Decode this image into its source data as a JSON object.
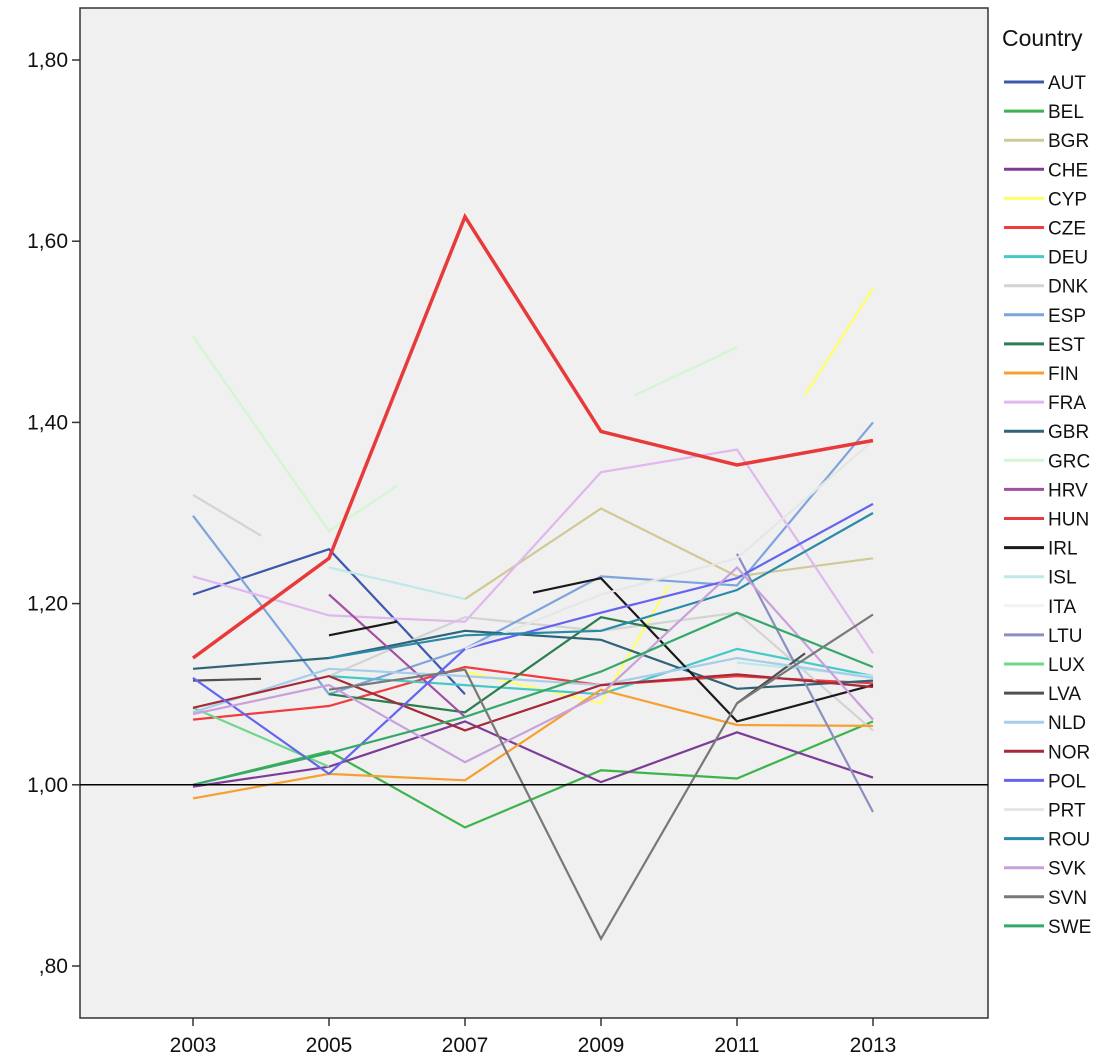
{
  "chart_data": {
    "type": "line",
    "title": "",
    "xlabel": "",
    "ylabel": "",
    "x": [
      2003,
      2005,
      2007,
      2009,
      2011,
      2013
    ],
    "x_tick_labels": [
      "2003",
      "2005",
      "2007",
      "2009",
      "2011",
      "2013"
    ],
    "ylim": [
      0.75,
      1.87
    ],
    "y_ticks": [
      0.8,
      1.0,
      1.2,
      1.4,
      1.6,
      1.8
    ],
    "y_tick_labels": [
      ",80",
      "1,00",
      "1,20",
      "1,40",
      "1,60",
      "1,80"
    ],
    "reference_line": 1.0,
    "grid": false,
    "plot_background": "#f0f0f0",
    "legend": {
      "title": "Country",
      "placement": "right"
    },
    "series": [
      {
        "name": "AUT",
        "color": "#3e58ac",
        "segments": [
          [
            [
              2003,
              1.21
            ],
            [
              2005,
              1.26
            ],
            [
              2007,
              1.1
            ]
          ]
        ]
      },
      {
        "name": "BEL",
        "color": "#3cb44b",
        "segments": [
          [
            [
              2003,
              1.0
            ],
            [
              2005,
              1.037
            ],
            [
              2007,
              0.953
            ],
            [
              2009,
              1.016
            ],
            [
              2011,
              1.007
            ],
            [
              2013,
              1.07
            ]
          ]
        ]
      },
      {
        "name": "BGR",
        "color": "#cfc995",
        "segments": [
          [
            [
              2007,
              1.205
            ],
            [
              2009,
              1.305
            ],
            [
              2011,
              1.23
            ],
            [
              2013,
              1.25
            ]
          ]
        ]
      },
      {
        "name": "CHE",
        "color": "#7d3c98",
        "segments": [
          [
            [
              2003,
              0.998
            ],
            [
              2005,
              1.02
            ],
            [
              2007,
              1.07
            ],
            [
              2009,
              1.003
            ],
            [
              2011,
              1.058
            ],
            [
              2013,
              1.008
            ]
          ]
        ]
      },
      {
        "name": "CYP",
        "color": "#ffff66",
        "segments": [
          [
            [
              2007,
              1.125
            ],
            [
              2009,
              1.09
            ],
            [
              2010,
              1.22
            ]
          ],
          [
            [
              2012,
              1.43
            ],
            [
              2013,
              1.548
            ]
          ]
        ]
      },
      {
        "name": "CZE",
        "color": "#f03c3c",
        "segments": [
          [
            [
              2003,
              1.072
            ],
            [
              2005,
              1.087
            ],
            [
              2007,
              1.13
            ],
            [
              2009,
              1.11
            ],
            [
              2011,
              1.12
            ],
            [
              2013,
              1.112
            ]
          ]
        ]
      },
      {
        "name": "DEU",
        "color": "#46c8c8",
        "segments": [
          [
            [
              2005,
              1.12
            ],
            [
              2007,
              1.11
            ],
            [
              2009,
              1.1
            ],
            [
              2011,
              1.15
            ],
            [
              2013,
              1.12
            ]
          ]
        ]
      },
      {
        "name": "DNK",
        "color": "#d3d3d3",
        "segments": [
          [
            [
              2003,
              1.32
            ],
            [
              2004,
              1.275
            ]
          ],
          [
            [
              2005,
              1.12
            ],
            [
              2007,
              1.185
            ],
            [
              2009,
              1.17
            ],
            [
              2011,
              1.19
            ],
            [
              2013,
              1.06
            ]
          ]
        ]
      },
      {
        "name": "ESP",
        "color": "#7da5dc",
        "segments": [
          [
            [
              2003,
              1.297
            ],
            [
              2005,
              1.1
            ],
            [
              2007,
              1.15
            ],
            [
              2009,
              1.23
            ],
            [
              2011,
              1.22
            ],
            [
              2013,
              1.4
            ]
          ]
        ]
      },
      {
        "name": "EST",
        "color": "#2e7d4f",
        "segments": [
          [
            [
              2005,
              1.1
            ],
            [
              2007,
              1.08
            ],
            [
              2009,
              1.185
            ],
            [
              2010,
              1.17
            ]
          ]
        ]
      },
      {
        "name": "FIN",
        "color": "#f5a030",
        "segments": [
          [
            [
              2003,
              0.985
            ],
            [
              2005,
              1.012
            ],
            [
              2007,
              1.005
            ],
            [
              2009,
              1.105
            ],
            [
              2011,
              1.066
            ],
            [
              2013,
              1.065
            ]
          ]
        ]
      },
      {
        "name": "FRA",
        "color": "#e0b7ee",
        "segments": [
          [
            [
              2003,
              1.23
            ],
            [
              2005,
              1.187
            ],
            [
              2007,
              1.18
            ],
            [
              2009,
              1.345
            ],
            [
              2011,
              1.37
            ],
            [
              2013,
              1.145
            ]
          ]
        ]
      },
      {
        "name": "GBR",
        "color": "#2f6478",
        "segments": [
          [
            [
              2003,
              1.128
            ],
            [
              2005,
              1.14
            ],
            [
              2007,
              1.17
            ],
            [
              2009,
              1.16
            ],
            [
              2011,
              1.106
            ],
            [
              2013,
              1.115
            ]
          ]
        ]
      },
      {
        "name": "GRC",
        "color": "#d2f5d2",
        "segments": [
          [
            [
              2003,
              1.495
            ],
            [
              2005,
              1.28
            ],
            [
              2006,
              1.33
            ]
          ],
          [
            [
              2009.5,
              1.43
            ],
            [
              2011,
              1.483
            ]
          ]
        ]
      },
      {
        "name": "HRV",
        "color": "#a34ea3",
        "segments": [
          [
            [
              2005,
              1.21
            ],
            [
              2007,
              1.075
            ]
          ]
        ]
      },
      {
        "name": "HUN",
        "color": "#e8393b",
        "segments": [
          [
            [
              2003,
              1.14
            ],
            [
              2005,
              1.25
            ],
            [
              2007,
              1.627
            ],
            [
              2009,
              1.39
            ],
            [
              2011,
              1.353
            ],
            [
              2013,
              1.38
            ]
          ]
        ]
      },
      {
        "name": "IRL",
        "color": "#1a1a1a",
        "segments": [
          [
            [
              2005,
              1.165
            ],
            [
              2006,
              1.18
            ]
          ],
          [
            [
              2008,
              1.212
            ],
            [
              2009,
              1.228
            ],
            [
              2011,
              1.07
            ],
            [
              2013,
              1.11
            ]
          ]
        ]
      },
      {
        "name": "ISL",
        "color": "#bfe8e8",
        "segments": [
          [
            [
              2005,
              1.24
            ],
            [
              2007,
              1.205
            ]
          ],
          [
            [
              2011,
              1.135
            ],
            [
              2013,
              1.12
            ]
          ]
        ]
      },
      {
        "name": "ITA",
        "color": "#f2f2f2",
        "segments": []
      },
      {
        "name": "LTU",
        "color": "#8a8fc0",
        "segments": [
          [
            [
              2011,
              1.255
            ],
            [
              2013,
              0.97
            ]
          ]
        ]
      },
      {
        "name": "LUX",
        "color": "#70d68a",
        "segments": [
          [
            [
              2003,
              1.085
            ],
            [
              2005,
              1.02
            ]
          ]
        ]
      },
      {
        "name": "LVA",
        "color": "#505050",
        "segments": [
          [
            [
              2003,
              1.115
            ],
            [
              2004,
              1.117
            ]
          ],
          [
            [
              2011,
              1.09
            ],
            [
              2012,
              1.145
            ]
          ]
        ]
      },
      {
        "name": "NLD",
        "color": "#a8cdea",
        "segments": [
          [
            [
              2003,
              1.08
            ],
            [
              2005,
              1.128
            ],
            [
              2007,
              1.12
            ],
            [
              2009,
              1.11
            ],
            [
              2011,
              1.14
            ],
            [
              2013,
              1.118
            ]
          ]
        ]
      },
      {
        "name": "NOR",
        "color": "#a52a3a",
        "segments": [
          [
            [
              2003,
              1.085
            ],
            [
              2005,
              1.12
            ],
            [
              2007,
              1.06
            ],
            [
              2009,
              1.11
            ],
            [
              2011,
              1.122
            ],
            [
              2013,
              1.108
            ]
          ]
        ]
      },
      {
        "name": "POL",
        "color": "#6464f0",
        "segments": [
          [
            [
              2003,
              1.118
            ],
            [
              2005,
              1.012
            ],
            [
              2007,
              1.15
            ],
            [
              2009,
              1.19
            ],
            [
              2011,
              1.228
            ],
            [
              2013,
              1.31
            ]
          ]
        ]
      },
      {
        "name": "PRT",
        "color": "#e6e6e6",
        "segments": [
          [
            [
              2007,
              1.15
            ],
            [
              2009,
              1.21
            ],
            [
              2011,
              1.25
            ],
            [
              2013,
              1.38
            ]
          ]
        ]
      },
      {
        "name": "ROU",
        "color": "#2a8aa8",
        "segments": [
          [
            [
              2005,
              1.14
            ],
            [
              2007,
              1.165
            ],
            [
              2009,
              1.17
            ],
            [
              2011,
              1.215
            ],
            [
              2013,
              1.3
            ]
          ]
        ]
      },
      {
        "name": "SVK",
        "color": "#c8a0dc",
        "segments": [
          [
            [
              2003,
              1.078
            ],
            [
              2005,
              1.11
            ],
            [
              2007,
              1.025
            ],
            [
              2009,
              1.1
            ],
            [
              2011,
              1.24
            ],
            [
              2013,
              1.072
            ]
          ]
        ]
      },
      {
        "name": "SVN",
        "color": "#787878",
        "segments": [
          [
            [
              2005,
              1.105
            ],
            [
              2007,
              1.127
            ],
            [
              2009,
              0.83
            ],
            [
              2011,
              1.09
            ],
            [
              2013,
              1.188
            ]
          ]
        ]
      },
      {
        "name": "SWE",
        "color": "#35a86a",
        "segments": [
          [
            [
              2003,
              1.0
            ],
            [
              2005,
              1.035
            ],
            [
              2007,
              1.075
            ],
            [
              2009,
              1.125
            ],
            [
              2011,
              1.19
            ],
            [
              2013,
              1.13
            ]
          ]
        ]
      }
    ]
  }
}
